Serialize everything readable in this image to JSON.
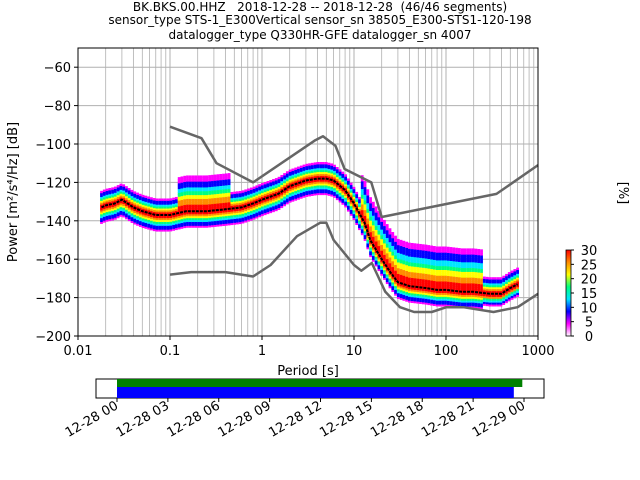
{
  "title_lines": [
    "BK.BKS.00.HHZ   2018-12-28 -- 2018-12-28  (46/46 segments)",
    "sensor_type STS-1_E300Vertical sensor_sn 38505_E300-STS1-120-198",
    "datalogger_type Q330HR-GFE datalogger_sn 4007"
  ],
  "chart_data": {
    "type": "heatmap",
    "subtype": "PPSD probabilistic power spectral density",
    "xlabel": "Period [s]",
    "ylabel": "Power [m²/s⁴/Hz] [dB]",
    "xscale": "log",
    "xlim": [
      0.01,
      1000
    ],
    "ylim": [
      -200,
      -50
    ],
    "xticks": [
      {
        "v": 0.01,
        "label": "0.01"
      },
      {
        "v": 0.1,
        "label": "0.1"
      },
      {
        "v": 1,
        "label": "1"
      },
      {
        "v": 10,
        "label": "10"
      },
      {
        "v": 100,
        "label": "100"
      },
      {
        "v": 1000,
        "label": "1000"
      }
    ],
    "yticks": [
      {
        "v": -60,
        "label": "−60"
      },
      {
        "v": -80,
        "label": "−80"
      },
      {
        "v": -100,
        "label": "−100"
      },
      {
        "v": -120,
        "label": "−120"
      },
      {
        "v": -140,
        "label": "−140"
      },
      {
        "v": -160,
        "label": "−160"
      },
      {
        "v": -180,
        "label": "−180"
      },
      {
        "v": -200,
        "label": "−200"
      }
    ],
    "grid": true,
    "colorbar": {
      "label": "[%]",
      "min": 0,
      "max": 30,
      "ticks": [
        "0",
        "5",
        "10",
        "15",
        "20",
        "25",
        "30"
      ],
      "colors": [
        "#ffffff",
        "#ff00ff",
        "#0000ff",
        "#00e5ff",
        "#00ff7f",
        "#ffff00",
        "#ff8c00",
        "#ff0000"
      ]
    },
    "noise_models": {
      "high": [
        [
          0.1,
          -91
        ],
        [
          0.22,
          -97
        ],
        [
          0.32,
          -110
        ],
        [
          0.8,
          -120
        ],
        [
          3.8,
          -98
        ],
        [
          4.6,
          -96
        ],
        [
          6.3,
          -101
        ],
        [
          7.9,
          -113
        ],
        [
          15.4,
          -120
        ],
        [
          20,
          -138
        ],
        [
          354,
          -126
        ],
        [
          1000,
          -111
        ]
      ],
      "low": [
        [
          0.1,
          -168
        ],
        [
          0.17,
          -166.7
        ],
        [
          0.4,
          -166.7
        ],
        [
          0.8,
          -169
        ],
        [
          1.24,
          -163
        ],
        [
          2.4,
          -148
        ],
        [
          4.3,
          -141
        ],
        [
          5,
          -141
        ],
        [
          6,
          -150
        ],
        [
          10,
          -163
        ],
        [
          12,
          -166
        ],
        [
          15.6,
          -162
        ],
        [
          21.9,
          -177
        ],
        [
          31.6,
          -185
        ],
        [
          45,
          -187.5
        ],
        [
          70,
          -187.5
        ],
        [
          101,
          -185
        ],
        [
          154,
          -185
        ],
        [
          328,
          -187.5
        ],
        [
          600,
          -185
        ],
        [
          1000,
          -178
        ]
      ]
    },
    "median": [
      [
        0.018,
        -133
      ],
      [
        0.02,
        -132
      ],
      [
        0.025,
        -131
      ],
      [
        0.03,
        -129
      ],
      [
        0.04,
        -133
      ],
      [
        0.05,
        -135
      ],
      [
        0.07,
        -137
      ],
      [
        0.1,
        -137
      ],
      [
        0.15,
        -135
      ],
      [
        0.25,
        -135
      ],
      [
        0.4,
        -134
      ],
      [
        0.6,
        -133
      ],
      [
        0.8,
        -131
      ],
      [
        1,
        -129
      ],
      [
        1.5,
        -126
      ],
      [
        2,
        -122
      ],
      [
        3,
        -119
      ],
      [
        4,
        -118
      ],
      [
        5,
        -118
      ],
      [
        6,
        -119
      ],
      [
        8,
        -124
      ],
      [
        10,
        -131
      ],
      [
        13,
        -141
      ],
      [
        15,
        -150
      ],
      [
        20,
        -160
      ],
      [
        25,
        -167
      ],
      [
        30,
        -172
      ],
      [
        40,
        -174
      ],
      [
        60,
        -175
      ],
      [
        80,
        -176
      ],
      [
        100,
        -176
      ],
      [
        150,
        -177
      ],
      [
        200,
        -177
      ],
      [
        300,
        -178
      ],
      [
        400,
        -178
      ],
      [
        500,
        -175
      ],
      [
        600,
        -173
      ]
    ],
    "timeline": {
      "tick_labels": [
        "12-28 00",
        "12-28 03",
        "12-28 06",
        "12-28 09",
        "12-28 12",
        "12-28 15",
        "12-28 18",
        "12-28 21",
        "12-29 00"
      ],
      "coverage_color": "#008000",
      "gap_color": "#0000ff",
      "coverage_start_hour": 0,
      "coverage_end_hour": 23.9,
      "data_end_hour": 23.4
    }
  }
}
